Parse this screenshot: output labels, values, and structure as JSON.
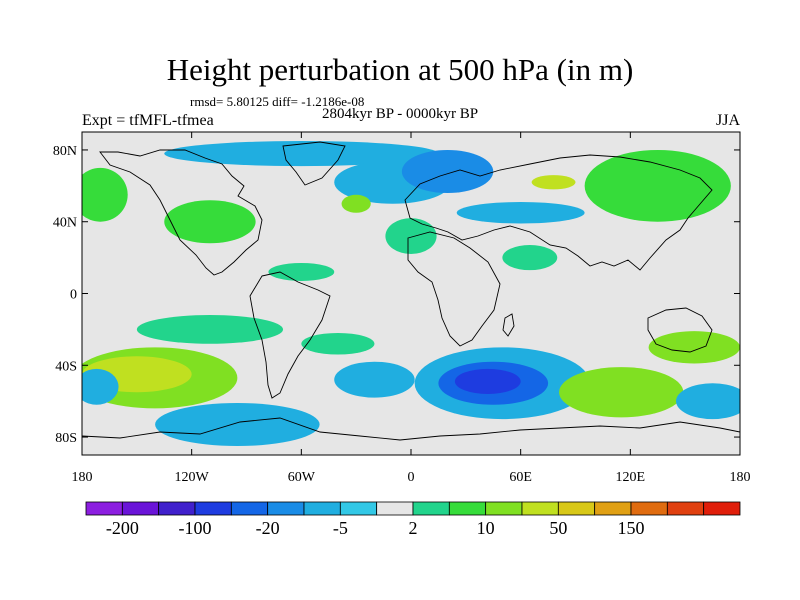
{
  "header": {
    "title": "Height perturbation at 500 hPa (in m)",
    "stats": "rmsd= 5.80125 diff= -1.2186e-08",
    "subtitle": "2804kyr BP - 0000kyr BP",
    "left_label": "Expt = tfMFL-tfmea",
    "right_label": "JJA"
  },
  "map": {
    "lon_range": [
      -180,
      180
    ],
    "lat_range": [
      -90,
      90
    ],
    "lat_ticks": [
      {
        "value": 80,
        "label": "80N"
      },
      {
        "value": 40,
        "label": "40N"
      },
      {
        "value": 0,
        "label": "0"
      },
      {
        "value": -40,
        "label": "40S"
      },
      {
        "value": -80,
        "label": "80S"
      }
    ],
    "lon_ticks": [
      {
        "value": -180,
        "label": "180"
      },
      {
        "value": -120,
        "label": "120W"
      },
      {
        "value": -60,
        "label": "60W"
      },
      {
        "value": 0,
        "label": "0"
      },
      {
        "value": 60,
        "label": "60E"
      },
      {
        "value": 120,
        "label": "120E"
      },
      {
        "value": 180,
        "label": "180"
      }
    ]
  },
  "colorbar": {
    "colors": [
      "#8c1ee0",
      "#6a14d8",
      "#4020cc",
      "#1e3ce0",
      "#1466e6",
      "#1a8ce6",
      "#20aee0",
      "#32c8e6",
      "#e6e6e6",
      "#22d48c",
      "#36dc3a",
      "#80e022",
      "#c0e020",
      "#d8c818",
      "#e0a014",
      "#e06c10",
      "#e04010",
      "#e01e0a"
    ],
    "labels": [
      {
        "after_index": 0,
        "text": "-200"
      },
      {
        "after_index": 2,
        "text": "-100"
      },
      {
        "after_index": 4,
        "text": "-20"
      },
      {
        "after_index": 6,
        "text": "-5"
      },
      {
        "after_index": 8,
        "text": "2"
      },
      {
        "after_index": 10,
        "text": "10"
      },
      {
        "after_index": 12,
        "text": "50"
      },
      {
        "after_index": 14,
        "text": "150"
      }
    ]
  },
  "field_features": [
    {
      "lon": -140,
      "lat": -47,
      "rx": 45,
      "ry": 17,
      "level": 11
    },
    {
      "lon": -150,
      "lat": -45,
      "rx": 30,
      "ry": 10,
      "level": 12
    },
    {
      "lon": -172,
      "lat": -52,
      "rx": 12,
      "ry": 10,
      "level": 6
    },
    {
      "lon": 50,
      "lat": -50,
      "rx": 48,
      "ry": 20,
      "level": 6
    },
    {
      "lon": 45,
      "lat": -50,
      "rx": 30,
      "ry": 12,
      "level": 4
    },
    {
      "lon": 42,
      "lat": -49,
      "rx": 18,
      "ry": 7,
      "level": 3
    },
    {
      "lon": 115,
      "lat": -55,
      "rx": 34,
      "ry": 14,
      "level": 11
    },
    {
      "lon": 155,
      "lat": -30,
      "rx": 25,
      "ry": 9,
      "level": 11
    },
    {
      "lon": 165,
      "lat": -60,
      "rx": 20,
      "ry": 10,
      "level": 6
    },
    {
      "lon": -95,
      "lat": -73,
      "rx": 45,
      "ry": 12,
      "level": 6
    },
    {
      "lon": -20,
      "lat": -48,
      "rx": 22,
      "ry": 10,
      "level": 6
    },
    {
      "lon": -110,
      "lat": -20,
      "rx": 40,
      "ry": 8,
      "level": 9
    },
    {
      "lon": -40,
      "lat": -28,
      "rx": 20,
      "ry": 6,
      "level": 9
    },
    {
      "lon": -60,
      "lat": 78,
      "rx": 75,
      "ry": 7,
      "level": 6
    },
    {
      "lon": -10,
      "lat": 62,
      "rx": 32,
      "ry": 12,
      "level": 6
    },
    {
      "lon": 20,
      "lat": 68,
      "rx": 25,
      "ry": 12,
      "level": 5
    },
    {
      "lon": 60,
      "lat": 45,
      "rx": 35,
      "ry": 6,
      "level": 6
    },
    {
      "lon": 135,
      "lat": 60,
      "rx": 40,
      "ry": 20,
      "level": 10
    },
    {
      "lon": 78,
      "lat": 62,
      "rx": 12,
      "ry": 4,
      "level": 12
    },
    {
      "lon": -170,
      "lat": 55,
      "rx": 15,
      "ry": 15,
      "level": 10
    },
    {
      "lon": -110,
      "lat": 40,
      "rx": 25,
      "ry": 12,
      "level": 10
    },
    {
      "lon": -30,
      "lat": 50,
      "rx": 8,
      "ry": 5,
      "level": 11
    },
    {
      "lon": 0,
      "lat": 32,
      "rx": 14,
      "ry": 10,
      "level": 9
    },
    {
      "lon": 65,
      "lat": 20,
      "rx": 15,
      "ry": 7,
      "level": 9
    },
    {
      "lon": -60,
      "lat": 12,
      "rx": 18,
      "ry": 5,
      "level": 9
    }
  ]
}
